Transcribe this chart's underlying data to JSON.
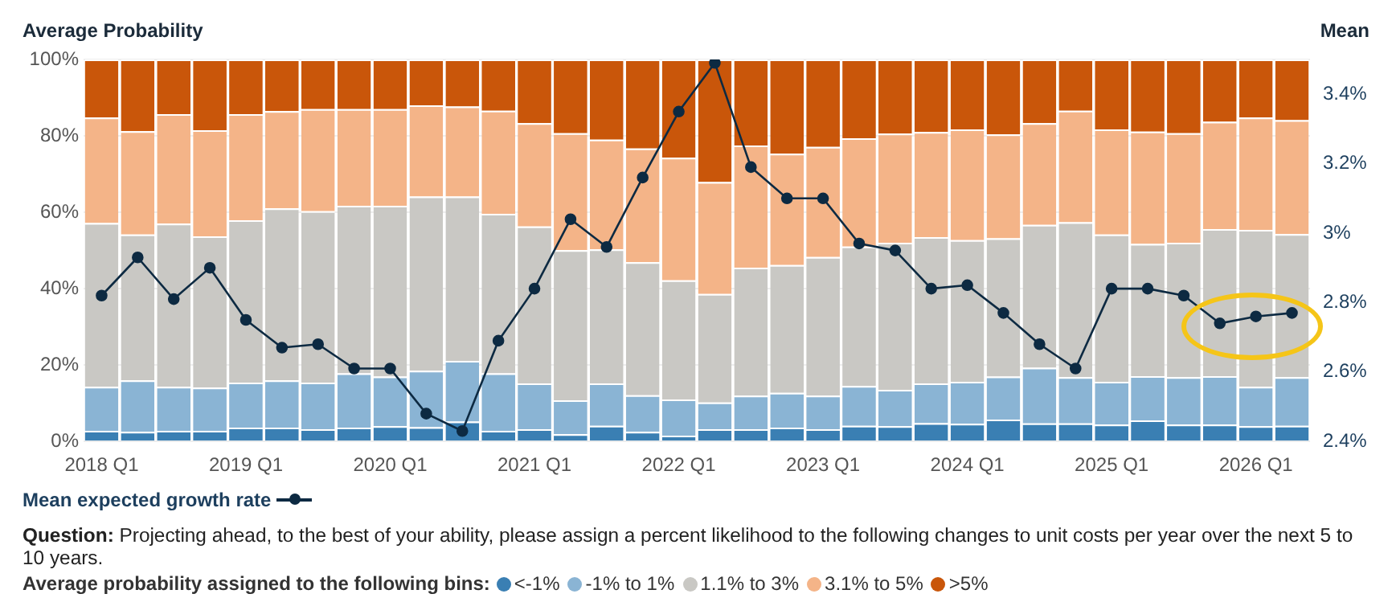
{
  "chart_data": {
    "type": "bar",
    "stacked": true,
    "ylabel": "Average Probability",
    "y2label": "Mean",
    "legend_title": "Average probability assigned to the following bins:",
    "legend": "bottom",
    "grid": "y",
    "categories": [
      "2018 Q1",
      null,
      null,
      null,
      "2019 Q1",
      null,
      null,
      null,
      "2020 Q1",
      null,
      null,
      null,
      "2021 Q1",
      null,
      null,
      null,
      "2022 Q1",
      null,
      null,
      null,
      "2023 Q1",
      null,
      null,
      null,
      "2024 Q1",
      null,
      null,
      null,
      "2025 Q1",
      null,
      null,
      null,
      "2026 Q1",
      null
    ],
    "ylim": [
      0,
      100
    ],
    "yticks": [
      {
        "value": 0,
        "label": "0%"
      },
      {
        "value": 20,
        "label": "20%"
      },
      {
        "value": 40,
        "label": "40%"
      },
      {
        "value": 60,
        "label": "60%"
      },
      {
        "value": 80,
        "label": "80%"
      },
      {
        "value": 100,
        "label": "100%"
      }
    ],
    "y2lim": [
      2.4,
      3.5
    ],
    "y2ticks": [
      {
        "value": 2.4,
        "label": "2.4%"
      },
      {
        "value": 2.6,
        "label": "2.6%"
      },
      {
        "value": 2.8,
        "label": "2.8%"
      },
      {
        "value": 3.0,
        "label": "3%"
      },
      {
        "value": 3.2,
        "label": "3.2%"
      },
      {
        "value": 3.4,
        "label": "3.4%"
      }
    ],
    "series": [
      {
        "name": "<-1%",
        "color": "#3a7fb3",
        "values": [
          2.8,
          2.5,
          2.8,
          2.8,
          3.6,
          3.6,
          3.2,
          3.6,
          4.0,
          3.7,
          5.2,
          2.8,
          3.2,
          1.9,
          4.1,
          2.5,
          1.5,
          3.2,
          3.2,
          3.6,
          3.2,
          4.1,
          4.0,
          4.8,
          4.6,
          5.7,
          4.7,
          4.7,
          4.4,
          5.5,
          4.4,
          4.4,
          4.0,
          4.1
        ]
      },
      {
        "name": "-1% to 1%",
        "color": "#8ab4d4",
        "values": [
          11.5,
          13.5,
          11.5,
          11.3,
          11.8,
          12.4,
          12.2,
          14.2,
          13.0,
          14.8,
          15.9,
          15.0,
          12.0,
          8.9,
          11.1,
          9.6,
          9.5,
          7.0,
          8.8,
          9.1,
          8.8,
          10.4,
          9.5,
          10.4,
          11.0,
          11.3,
          14.6,
          12.1,
          11.2,
          11.6,
          12.4,
          12.7,
          10.3,
          12.7
        ]
      },
      {
        "name": "1.1% to 3%",
        "color": "#c9c8c4",
        "values": [
          42.9,
          38.2,
          42.7,
          39.6,
          42.5,
          45.0,
          44.9,
          43.9,
          44.7,
          45.6,
          43.0,
          41.8,
          41.1,
          39.3,
          35.1,
          34.8,
          31.2,
          28.4,
          33.5,
          33.5,
          36.3,
          36.5,
          38.5,
          38.3,
          37.1,
          36.2,
          37.4,
          40.6,
          38.6,
          34.6,
          35.2,
          38.5,
          41.1,
          37.5
        ]
      },
      {
        "name": "3.1% to 5%",
        "color": "#f4b488",
        "values": [
          27.6,
          27.0,
          28.7,
          27.8,
          27.8,
          25.5,
          26.7,
          25.3,
          25.3,
          23.9,
          23.6,
          27.0,
          27.0,
          30.6,
          28.7,
          29.8,
          32.1,
          29.3,
          32.0,
          29.1,
          28.8,
          28.4,
          28.6,
          27.5,
          29.0,
          27.2,
          26.6,
          29.2,
          27.5,
          29.4,
          28.7,
          28.1,
          29.4,
          29.8
        ]
      },
      {
        "name": ">5%",
        "color": "#c9560a",
        "values": [
          15.2,
          18.8,
          14.3,
          18.5,
          14.3,
          13.5,
          13.0,
          13.0,
          13.0,
          12.0,
          12.3,
          13.4,
          16.7,
          19.3,
          21.0,
          23.3,
          25.7,
          32.1,
          22.5,
          24.7,
          22.9,
          20.6,
          19.4,
          19.0,
          18.3,
          19.6,
          16.7,
          13.4,
          18.3,
          18.9,
          19.3,
          16.3,
          15.2,
          15.9
        ]
      },
      {
        "name": "Mean expected growth rate",
        "type": "line",
        "axis": "y2",
        "color": "#0d2a42",
        "marker": "circle",
        "values": [
          2.82,
          2.93,
          2.81,
          2.9,
          2.75,
          2.67,
          2.68,
          2.61,
          2.61,
          2.48,
          2.43,
          2.69,
          2.84,
          3.04,
          2.96,
          3.16,
          3.35,
          3.49,
          3.19,
          3.1,
          3.1,
          2.97,
          2.95,
          2.84,
          2.85,
          2.77,
          2.68,
          2.61,
          2.84,
          2.84,
          2.82,
          2.74,
          2.76,
          2.77
        ]
      }
    ],
    "annotations": [
      "Question: Projecting ahead, to the best of your ability, please assign a percent likelihood to the following changes to unit costs per year over the next 5 to 10 years."
    ]
  }
}
